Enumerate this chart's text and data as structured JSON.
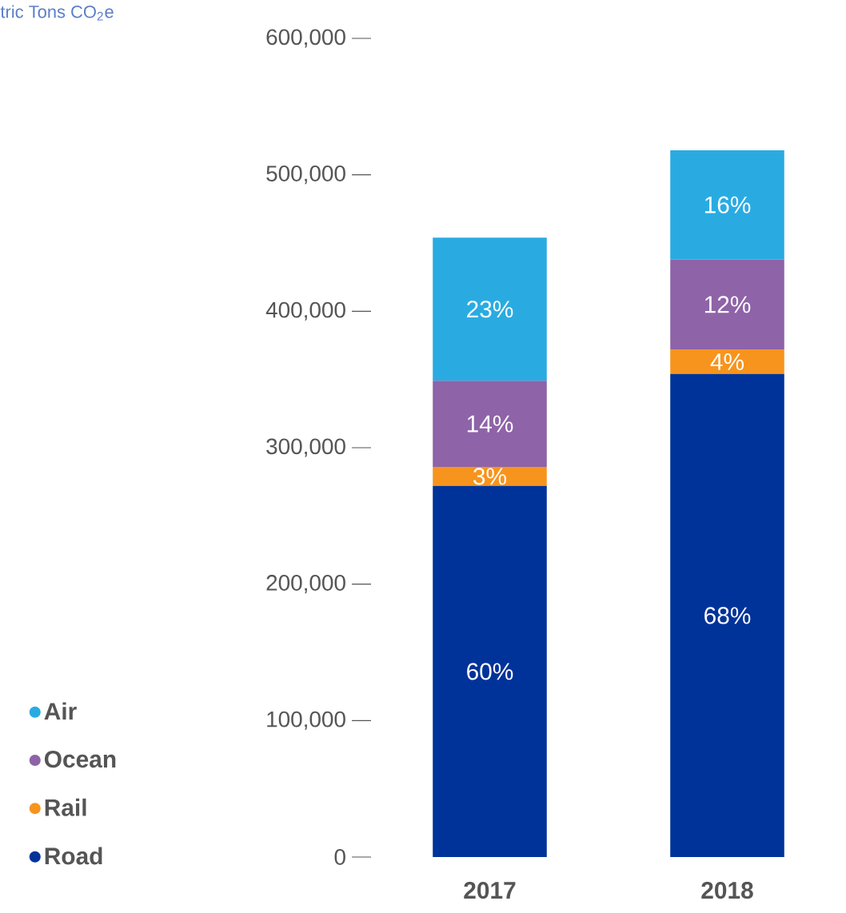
{
  "chart_data": {
    "type": "bar",
    "stacked": true,
    "categories": [
      "2017",
      "2018"
    ],
    "series": [
      {
        "name": "Road",
        "color": "#003399",
        "values": [
          272000,
          354000
        ]
      },
      {
        "name": "Rail",
        "color": "#f7941d",
        "values": [
          14000,
          18000
        ]
      },
      {
        "name": "Ocean",
        "color": "#8e63a8",
        "values": [
          63000,
          66000
        ]
      },
      {
        "name": "Air",
        "color": "#29abe2",
        "values": [
          105000,
          80000
        ]
      }
    ],
    "annotations": [
      "tric Tons CO$_{2}$e",
      "60%",
      "3%",
      "14%",
      "23%",
      "68%",
      "4%",
      "12%",
      "16%"
    ],
    "ylim": [
      0,
      600000
    ],
    "yticks": [
      {
        "value": 0,
        "label": "0"
      },
      {
        "value": 100000,
        "label": "100,000"
      },
      {
        "value": 200000,
        "label": "200,000"
      },
      {
        "value": 300000,
        "label": "300,000"
      },
      {
        "value": 400000,
        "label": "400,000"
      },
      {
        "value": 500000,
        "label": "500,000"
      },
      {
        "value": 600000,
        "label": "600,000"
      }
    ],
    "legend": "bottom left"
  }
}
